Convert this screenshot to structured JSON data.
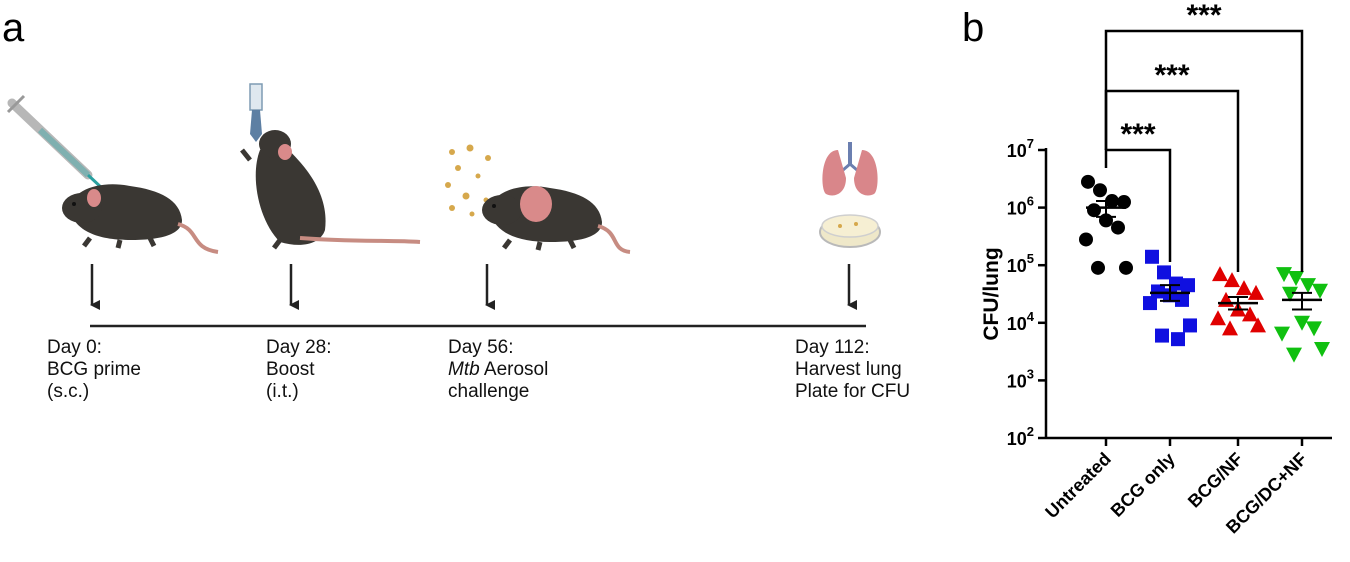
{
  "panels": {
    "a": "a",
    "b": "b"
  },
  "timeline": {
    "steps": [
      {
        "lines": [
          "Day 0:",
          "BCG prime",
          "(s.c.)"
        ]
      },
      {
        "lines": [
          "Day 28:",
          "Boost",
          "(i.t.)"
        ]
      },
      {
        "day": "Day 56:",
        "italic_word": "Mtb",
        "line2_rest": " Aerosol",
        "line3": "challenge"
      },
      {
        "lines": [
          "Day 112:",
          "Harvest lung",
          "Plate for CFU"
        ]
      }
    ]
  },
  "colors": {
    "untreated": "#000000",
    "bcg_only": "#1010e0",
    "bcg_nf": "#e00000",
    "bcg_dc_nf": "#10c010",
    "mouse": "#3a3733",
    "tail": "#c78c82",
    "ear": "#d98a8a",
    "particles": "#d6a84c",
    "lung": "#d9868a"
  },
  "chart_data": {
    "type": "scatter",
    "ylabel": "CFU/lung",
    "yscale": "log",
    "ylim": [
      100,
      10000000
    ],
    "yticks": [
      {
        "base": "10",
        "exp": "2",
        "value": 100
      },
      {
        "base": "10",
        "exp": "3",
        "value": 1000
      },
      {
        "base": "10",
        "exp": "4",
        "value": 10000
      },
      {
        "base": "10",
        "exp": "5",
        "value": 100000
      },
      {
        "base": "10",
        "exp": "6",
        "value": 1000000
      },
      {
        "base": "10",
        "exp": "7",
        "value": 10000000
      }
    ],
    "categories": [
      "Untreated",
      "BCG only",
      "BCG/NF",
      "BCG/DC+NF"
    ],
    "series": [
      {
        "marker": "circle",
        "color_key": "untreated",
        "mean": 1000000,
        "sem": [
          690000,
          1300000
        ],
        "values": [
          2800000,
          2000000,
          1300000,
          1250000,
          900000,
          600000,
          450000,
          280000,
          90000,
          90000
        ]
      },
      {
        "marker": "square",
        "color_key": "bcg_only",
        "mean": 33000,
        "sem": [
          24000,
          45000
        ],
        "values": [
          140000,
          75000,
          48000,
          45000,
          35000,
          30000,
          25000,
          22000,
          9000,
          6000,
          5200
        ]
      },
      {
        "marker": "triangle-up",
        "color_key": "bcg_nf",
        "mean": 22000,
        "sem": [
          17000,
          28000
        ],
        "values": [
          70000,
          55000,
          40000,
          33000,
          25000,
          17000,
          14000,
          12000,
          9000,
          8000
        ]
      },
      {
        "marker": "triangle-down",
        "color_key": "bcg_dc_nf",
        "mean": 25000,
        "sem": [
          17000,
          33000
        ],
        "values": [
          70000,
          60000,
          45000,
          36000,
          32000,
          10000,
          8000,
          6500,
          3500,
          2800
        ]
      }
    ],
    "significance": [
      {
        "from": 0,
        "to": 1,
        "label": "***"
      },
      {
        "from": 0,
        "to": 2,
        "label": "***"
      },
      {
        "from": 0,
        "to": 3,
        "label": "***"
      }
    ],
    "grid": false,
    "legend": "none"
  }
}
